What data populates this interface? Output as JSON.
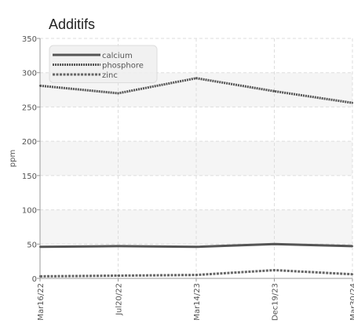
{
  "chart_data": {
    "type": "line",
    "title": "Additifs",
    "xlabel": "",
    "ylabel": "ppm",
    "x": [
      "Mar16/22",
      "Jul20/22",
      "Mar14/23",
      "Dec19/23",
      "Mar30/24"
    ],
    "ylim": [
      0,
      350
    ],
    "yticks": [
      0,
      50,
      100,
      150,
      200,
      250,
      300,
      350
    ],
    "grid": true,
    "legend": "top-left",
    "series": [
      {
        "name": "calcium",
        "values": [
          46,
          47,
          46,
          50,
          47
        ],
        "color": "#555555",
        "style": "solid"
      },
      {
        "name": "phosphore",
        "values": [
          281,
          270,
          292,
          273,
          256
        ],
        "color": "#555555",
        "style": "dotted"
      },
      {
        "name": "zinc",
        "values": [
          3,
          4,
          5,
          12,
          6
        ],
        "color": "#666666",
        "style": "dashed"
      }
    ]
  }
}
